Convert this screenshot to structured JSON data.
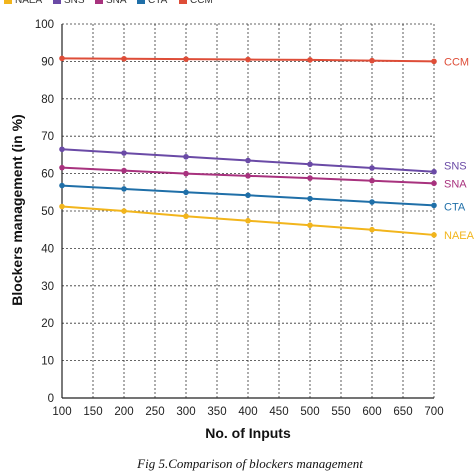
{
  "chart_data": {
    "type": "line",
    "caption": "Fig 5.Comparison of blockers management",
    "xlabel": "No. of Inputs",
    "ylabel": "Blockers management (in %)",
    "xlim": [
      100,
      700
    ],
    "ylim": [
      0,
      100
    ],
    "xticks": [
      100,
      150,
      200,
      250,
      300,
      350,
      400,
      450,
      500,
      550,
      600,
      650,
      700
    ],
    "yticks": [
      0,
      10,
      20,
      30,
      40,
      50,
      60,
      70,
      80,
      90,
      100
    ],
    "grid": true,
    "legend_position": "top",
    "x": [
      100,
      200,
      300,
      400,
      500,
      600,
      700
    ],
    "series": [
      {
        "name": "NAEA",
        "label": "NAEA",
        "color": "#f2b51c",
        "values": [
          51.2,
          50.0,
          48.6,
          47.4,
          46.2,
          45.0,
          43.6
        ]
      },
      {
        "name": "SNS",
        "label": "SNS",
        "color": "#6a4aa6",
        "values": [
          66.5,
          65.5,
          64.5,
          63.5,
          62.5,
          61.5,
          60.5
        ]
      },
      {
        "name": "SNA",
        "label": "SNA",
        "color": "#a8327e",
        "values": [
          61.6,
          60.8,
          60.0,
          59.4,
          58.8,
          58.1,
          57.4
        ]
      },
      {
        "name": "CTA",
        "label": "CTA",
        "color": "#1f6fa8",
        "values": [
          56.8,
          55.9,
          55.0,
          54.2,
          53.3,
          52.4,
          51.5
        ]
      },
      {
        "name": "CCM",
        "label": "CCM",
        "color": "#de4d38",
        "values": [
          90.8,
          90.7,
          90.6,
          90.5,
          90.4,
          90.2,
          90.0
        ]
      }
    ]
  }
}
